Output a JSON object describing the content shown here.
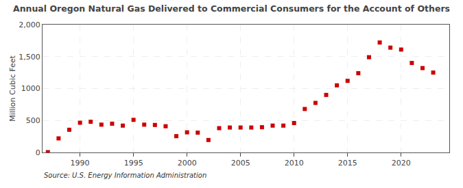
{
  "chart_data": {
    "type": "scatter",
    "title": "Annual Oregon Natural Gas Delivered to Commercial Consumers for the Account of Others",
    "y_label": "Million Cubic Feet",
    "annotations": [
      {
        "text": "Source: U.S. Energy Information Administration"
      }
    ],
    "x": [
      1987,
      1988,
      1989,
      1990,
      1991,
      1992,
      1993,
      1994,
      1995,
      1996,
      1997,
      1998,
      1999,
      2000,
      2001,
      2002,
      2003,
      2004,
      2005,
      2006,
      2007,
      2008,
      2009,
      2010,
      2011,
      2012,
      2013,
      2014,
      2015,
      2016,
      2017,
      2018,
      2019,
      2020,
      2021,
      2022,
      2023
    ],
    "values": [
      5,
      220,
      355,
      465,
      480,
      435,
      450,
      420,
      510,
      435,
      430,
      410,
      255,
      315,
      310,
      195,
      380,
      390,
      390,
      390,
      395,
      420,
      420,
      460,
      680,
      775,
      900,
      1050,
      1120,
      1240,
      1490,
      1720,
      1640,
      1610,
      1400,
      1320,
      1250
    ],
    "color": "#cc0000",
    "marker": "square",
    "xlim": [
      1986.5,
      2024.5
    ],
    "ylim": [
      0,
      2000
    ],
    "xticks": [
      1990,
      1995,
      2000,
      2005,
      2010,
      2015,
      2020
    ],
    "yticks": [
      0,
      500,
      1000,
      {
        "value": 1500,
        "label": "1,500"
      },
      {
        "value": 2000,
        "label": "2,000"
      }
    ],
    "grid": true
  }
}
